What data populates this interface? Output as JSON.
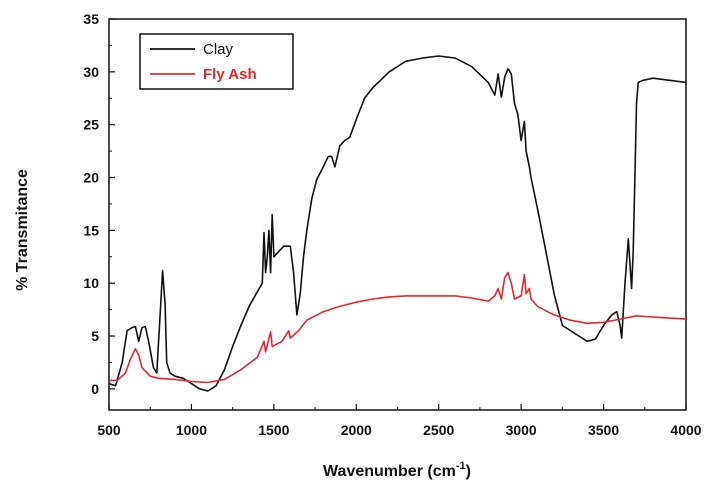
{
  "chart_data": {
    "type": "line",
    "title": "",
    "xlabel": "Wavenumber (cm",
    "xlabel_sup": "-1",
    "xlabel_close": ")",
    "ylabel": "% Transmitance",
    "xlim": [
      500,
      4000
    ],
    "ylim": [
      -2,
      35
    ],
    "x_ticks": [
      500,
      1000,
      1500,
      2000,
      2500,
      3000,
      3500,
      4000
    ],
    "y_ticks": [
      0,
      5,
      10,
      15,
      20,
      25,
      30,
      35
    ],
    "grid": false,
    "legend_position": "top-left",
    "series": [
      {
        "name": "Clay",
        "color": "#111111",
        "points": [
          [
            500,
            0.5
          ],
          [
            540,
            0.3
          ],
          [
            580,
            2.5
          ],
          [
            610,
            5.5
          ],
          [
            640,
            5.8
          ],
          [
            660,
            5.9
          ],
          [
            680,
            4.5
          ],
          [
            700,
            5.8
          ],
          [
            720,
            5.9
          ],
          [
            740,
            4.5
          ],
          [
            770,
            2
          ],
          [
            790,
            1.5
          ],
          [
            810,
            7
          ],
          [
            825,
            11.2
          ],
          [
            840,
            8
          ],
          [
            850,
            2.5
          ],
          [
            870,
            1.5
          ],
          [
            900,
            1.2
          ],
          [
            950,
            1
          ],
          [
            1000,
            0.5
          ],
          [
            1050,
            0
          ],
          [
            1100,
            -0.2
          ],
          [
            1150,
            0.3
          ],
          [
            1200,
            1.8
          ],
          [
            1250,
            4
          ],
          [
            1300,
            6
          ],
          [
            1350,
            7.8
          ],
          [
            1400,
            9.2
          ],
          [
            1430,
            10
          ],
          [
            1440,
            14.8
          ],
          [
            1450,
            11
          ],
          [
            1460,
            12.5
          ],
          [
            1470,
            15
          ],
          [
            1480,
            11
          ],
          [
            1490,
            16.5
          ],
          [
            1500,
            12.5
          ],
          [
            1530,
            13
          ],
          [
            1560,
            13.5
          ],
          [
            1600,
            13.5
          ],
          [
            1620,
            11
          ],
          [
            1640,
            7
          ],
          [
            1660,
            9
          ],
          [
            1680,
            12.5
          ],
          [
            1700,
            15
          ],
          [
            1730,
            18
          ],
          [
            1760,
            19.8
          ],
          [
            1800,
            21
          ],
          [
            1830,
            22
          ],
          [
            1850,
            22
          ],
          [
            1870,
            21
          ],
          [
            1900,
            23
          ],
          [
            1930,
            23.5
          ],
          [
            1960,
            23.8
          ],
          [
            2000,
            25.5
          ],
          [
            2050,
            27.5
          ],
          [
            2100,
            28.5
          ],
          [
            2200,
            30
          ],
          [
            2300,
            31
          ],
          [
            2400,
            31.3
          ],
          [
            2500,
            31.5
          ],
          [
            2600,
            31.3
          ],
          [
            2700,
            30.5
          ],
          [
            2800,
            29
          ],
          [
            2840,
            27.8
          ],
          [
            2860,
            29.8
          ],
          [
            2880,
            27.6
          ],
          [
            2900,
            29.5
          ],
          [
            2920,
            30.3
          ],
          [
            2940,
            29.8
          ],
          [
            2960,
            27
          ],
          [
            2980,
            26
          ],
          [
            3000,
            23.5
          ],
          [
            3020,
            25.3
          ],
          [
            3030,
            22.5
          ],
          [
            3050,
            21
          ],
          [
            3060,
            20
          ],
          [
            3100,
            17
          ],
          [
            3150,
            13
          ],
          [
            3200,
            9
          ],
          [
            3250,
            6
          ],
          [
            3300,
            5.5
          ],
          [
            3350,
            5
          ],
          [
            3400,
            4.5
          ],
          [
            3450,
            4.7
          ],
          [
            3500,
            6
          ],
          [
            3550,
            7
          ],
          [
            3580,
            7.3
          ],
          [
            3600,
            6
          ],
          [
            3610,
            4.8
          ],
          [
            3630,
            10
          ],
          [
            3650,
            14.2
          ],
          [
            3670,
            9.5
          ],
          [
            3680,
            13
          ],
          [
            3690,
            20
          ],
          [
            3700,
            27
          ],
          [
            3710,
            29
          ],
          [
            3740,
            29.2
          ],
          [
            3800,
            29.4
          ],
          [
            3900,
            29.2
          ],
          [
            4000,
            29
          ]
        ]
      },
      {
        "name": "Fly Ash",
        "color": "#e8252b",
        "points": [
          [
            500,
            0.8
          ],
          [
            550,
            0.8
          ],
          [
            600,
            1.5
          ],
          [
            630,
            2.8
          ],
          [
            660,
            3.8
          ],
          [
            680,
            3.2
          ],
          [
            700,
            2
          ],
          [
            750,
            1.2
          ],
          [
            800,
            1
          ],
          [
            900,
            0.9
          ],
          [
            1000,
            0.7
          ],
          [
            1100,
            0.6
          ],
          [
            1200,
            0.9
          ],
          [
            1300,
            1.8
          ],
          [
            1400,
            3
          ],
          [
            1440,
            4.5
          ],
          [
            1450,
            3.5
          ],
          [
            1480,
            5.4
          ],
          [
            1490,
            4
          ],
          [
            1550,
            4.5
          ],
          [
            1590,
            5.5
          ],
          [
            1600,
            4.8
          ],
          [
            1650,
            5.5
          ],
          [
            1700,
            6.5
          ],
          [
            1800,
            7.3
          ],
          [
            1900,
            7.8
          ],
          [
            2000,
            8.2
          ],
          [
            2100,
            8.5
          ],
          [
            2200,
            8.7
          ],
          [
            2300,
            8.8
          ],
          [
            2400,
            8.8
          ],
          [
            2500,
            8.8
          ],
          [
            2600,
            8.8
          ],
          [
            2700,
            8.6
          ],
          [
            2800,
            8.3
          ],
          [
            2840,
            8.8
          ],
          [
            2860,
            9.5
          ],
          [
            2880,
            8.5
          ],
          [
            2900,
            10.5
          ],
          [
            2920,
            11
          ],
          [
            2940,
            10
          ],
          [
            2960,
            8.5
          ],
          [
            3000,
            8.8
          ],
          [
            3020,
            10.8
          ],
          [
            3030,
            9
          ],
          [
            3050,
            9.5
          ],
          [
            3060,
            8.5
          ],
          [
            3100,
            7.8
          ],
          [
            3200,
            7
          ],
          [
            3300,
            6.5
          ],
          [
            3400,
            6.2
          ],
          [
            3500,
            6.3
          ],
          [
            3600,
            6.6
          ],
          [
            3700,
            6.9
          ],
          [
            3800,
            6.8
          ],
          [
            3900,
            6.7
          ],
          [
            4000,
            6.6
          ]
        ]
      }
    ]
  }
}
